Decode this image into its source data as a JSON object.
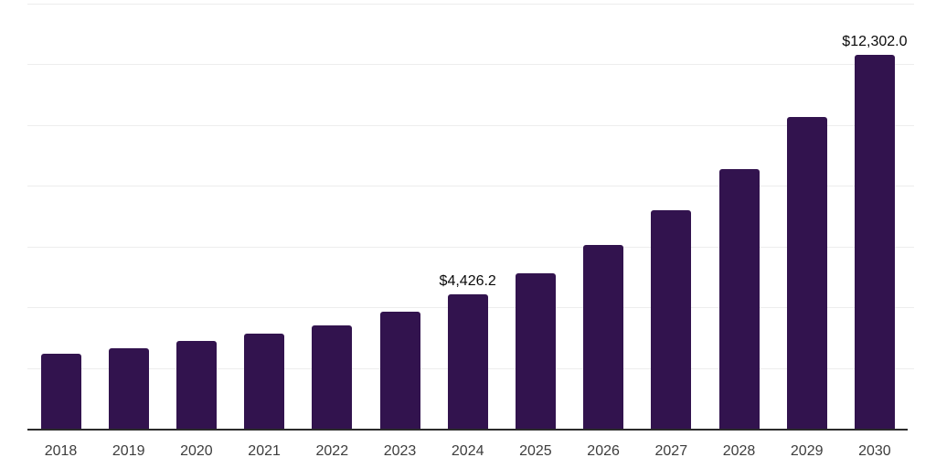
{
  "chart_data": {
    "type": "bar",
    "title": "",
    "xlabel": "",
    "ylabel": "",
    "categories": [
      "2018",
      "2019",
      "2020",
      "2021",
      "2022",
      "2023",
      "2024",
      "2025",
      "2026",
      "2027",
      "2028",
      "2029",
      "2030"
    ],
    "values": [
      2480,
      2660,
      2880,
      3130,
      3400,
      3850,
      4426.2,
      5120,
      6060,
      7200,
      8560,
      10270,
      12302.0
    ],
    "value_labels": [
      "",
      "",
      "",
      "",
      "",
      "",
      "$4,426.2",
      "",
      "",
      "",
      "",
      "",
      "$12,302.0"
    ],
    "labeled_points": [
      {
        "category": "2024",
        "label": "$4,426.2"
      },
      {
        "category": "2030",
        "label": "$12,302.0"
      }
    ],
    "ylim": [
      0,
      14000
    ],
    "gridline_interval": 2000,
    "grid": "horizontal",
    "legend": "none",
    "colors": {
      "bar": "#32134E",
      "gridline": "#EDEDED",
      "axis_line": "#2B2B2B",
      "tick_label": "#3D3D3D",
      "value_label": "#0A0A0A",
      "background": "#FFFFFF"
    }
  }
}
